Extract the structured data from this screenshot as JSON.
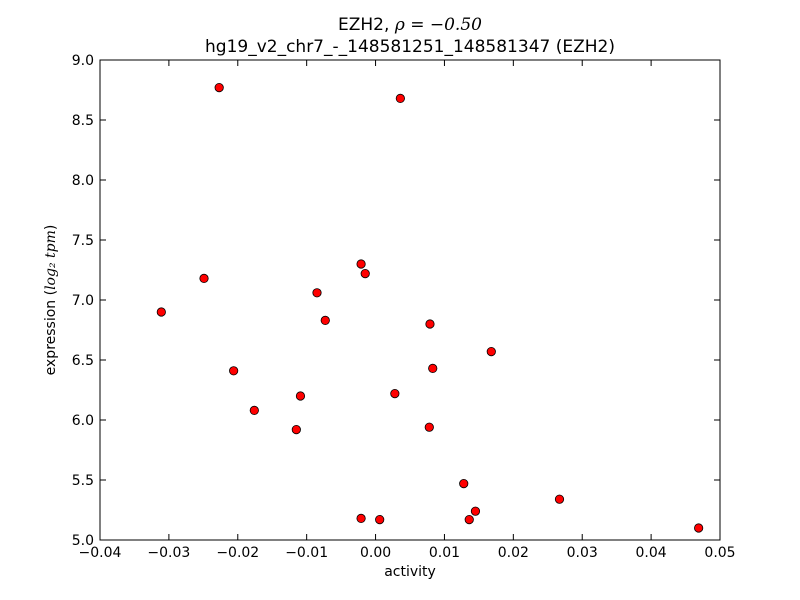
{
  "chart_data": {
    "type": "scatter",
    "title_line1_prefix": "EZH2, ",
    "title_math": "ρ = −0.50",
    "title_line2": "hg19_v2_chr7_-_148581251_148581347 (EZH2)",
    "xlabel": "activity",
    "ylabel_prefix": "expression (",
    "ylabel_math": "log₂ tpm",
    "ylabel_suffix": ")",
    "xlim": [
      -0.04,
      0.05
    ],
    "ylim": [
      5.0,
      9.0
    ],
    "x_ticks": [
      -0.04,
      -0.03,
      -0.02,
      -0.01,
      0.0,
      0.01,
      0.02,
      0.03,
      0.04,
      0.05
    ],
    "x_tick_labels": [
      "−0.04",
      "−0.03",
      "−0.02",
      "−0.01",
      "0.00",
      "0.01",
      "0.02",
      "0.03",
      "0.04",
      "0.05"
    ],
    "y_ticks": [
      5.0,
      5.5,
      6.0,
      6.5,
      7.0,
      7.5,
      8.0,
      8.5,
      9.0
    ],
    "y_tick_labels": [
      "5.0",
      "5.5",
      "6.0",
      "6.5",
      "7.0",
      "7.5",
      "8.0",
      "8.5",
      "9.0"
    ],
    "marker_color": "#ff0000",
    "grid": false,
    "points": [
      {
        "x": -0.0227,
        "y": 8.77
      },
      {
        "x": 0.0036,
        "y": 8.68
      },
      {
        "x": -0.0021,
        "y": 7.3
      },
      {
        "x": -0.0015,
        "y": 7.22
      },
      {
        "x": -0.0249,
        "y": 7.18
      },
      {
        "x": -0.0085,
        "y": 7.06
      },
      {
        "x": -0.0311,
        "y": 6.9
      },
      {
        "x": -0.0073,
        "y": 6.83
      },
      {
        "x": 0.0079,
        "y": 6.8
      },
      {
        "x": 0.0168,
        "y": 6.57
      },
      {
        "x": 0.0083,
        "y": 6.43
      },
      {
        "x": -0.0206,
        "y": 6.41
      },
      {
        "x": 0.0028,
        "y": 6.22
      },
      {
        "x": -0.0109,
        "y": 6.2
      },
      {
        "x": -0.0176,
        "y": 6.08
      },
      {
        "x": 0.0078,
        "y": 5.94
      },
      {
        "x": -0.0115,
        "y": 5.92
      },
      {
        "x": 0.0128,
        "y": 5.47
      },
      {
        "x": 0.0267,
        "y": 5.34
      },
      {
        "x": 0.0145,
        "y": 5.24
      },
      {
        "x": -0.0021,
        "y": 5.18
      },
      {
        "x": 0.0006,
        "y": 5.17
      },
      {
        "x": 0.0136,
        "y": 5.17
      },
      {
        "x": 0.0469,
        "y": 5.1
      }
    ]
  }
}
